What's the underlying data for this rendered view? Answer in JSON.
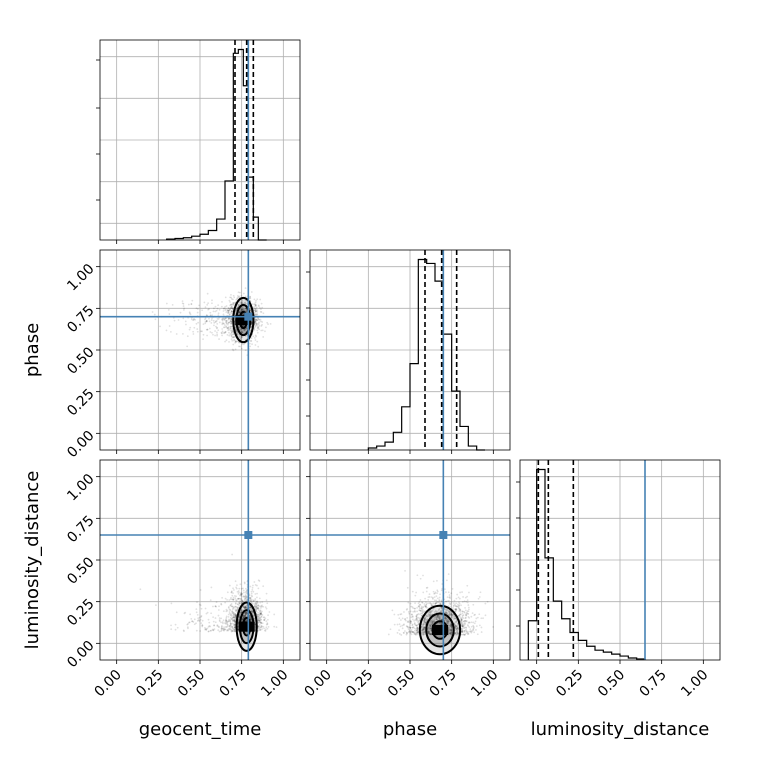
{
  "chart_data": {
    "type": "corner",
    "parameters": [
      "geocent_time",
      "phase",
      "luminosity_distance"
    ],
    "axis_range": [
      -0.1,
      1.1
    ],
    "ticks": [
      "0.00",
      "0.25",
      "0.50",
      "0.75",
      "1.00"
    ],
    "truths": {
      "geocent_time": 0.79,
      "phase": 0.7,
      "luminosity_distance": 0.65
    },
    "grid": true,
    "colors": {
      "truth": "#4682b4",
      "hist": "#000000",
      "quantile": "#000000",
      "samples": "#000000",
      "grid": "#b0b0b0"
    },
    "histograms": [
      {
        "parameter": "geocent_time",
        "bin_edges": [
          0.3,
          0.35,
          0.4,
          0.45,
          0.5,
          0.55,
          0.6,
          0.65,
          0.7,
          0.73,
          0.76,
          0.79,
          0.82,
          0.85,
          0.9
        ],
        "counts": [
          0.5,
          0.8,
          1.2,
          2,
          3,
          5,
          11,
          31,
          98,
          100,
          81,
          33,
          12,
          0
        ],
        "quantiles": [
          0.71,
          0.78,
          0.82
        ]
      },
      {
        "parameter": "phase",
        "bin_edges": [
          0.25,
          0.3,
          0.35,
          0.4,
          0.45,
          0.5,
          0.55,
          0.6,
          0.65,
          0.7,
          0.75,
          0.8,
          0.85,
          0.9,
          0.95
        ],
        "counts": [
          1,
          2,
          4,
          9,
          22,
          44,
          97,
          95,
          86,
          59,
          30,
          12,
          2,
          0
        ],
        "quantiles": [
          0.59,
          0.69,
          0.78
        ]
      },
      {
        "parameter": "luminosity_distance",
        "bin_edges": [
          -0.05,
          0.0,
          0.05,
          0.1,
          0.15,
          0.2,
          0.25,
          0.3,
          0.35,
          0.4,
          0.45,
          0.5,
          0.55,
          0.6,
          0.65
        ],
        "counts": [
          20,
          97,
          52,
          30,
          21,
          14,
          10,
          7,
          5,
          4,
          3,
          2,
          1,
          0.5
        ],
        "quantiles": [
          0.01,
          0.07,
          0.22
        ]
      }
    ],
    "joint_panels": [
      {
        "x": "geocent_time",
        "y": "phase",
        "center": [
          0.76,
          0.68
        ],
        "spread": [
          0.05,
          0.11
        ]
      },
      {
        "x": "geocent_time",
        "y": "luminosity_distance",
        "center": [
          0.78,
          0.1
        ],
        "spread": [
          0.05,
          0.12
        ]
      },
      {
        "x": "phase",
        "y": "luminosity_distance",
        "center": [
          0.68,
          0.08
        ],
        "spread": [
          0.1,
          0.12
        ]
      }
    ]
  }
}
